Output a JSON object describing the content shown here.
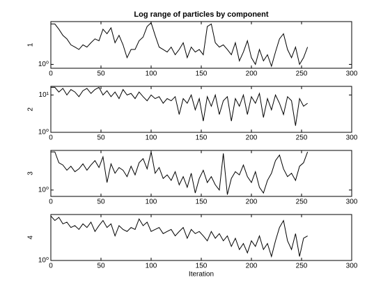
{
  "chart_data": [
    {
      "type": "line",
      "title": "Log range of particles by component",
      "ylabel": "1",
      "color": "#000000",
      "log_scale": true,
      "xlim": [
        0,
        300
      ],
      "xticks": [
        0,
        50,
        100,
        150,
        200,
        250,
        300
      ],
      "ylim": [
        0.9,
        3.2
      ],
      "yticks": [
        {
          "value": 1,
          "label": "10⁰"
        }
      ],
      "x": [
        0,
        4,
        8,
        12,
        16,
        20,
        24,
        28,
        32,
        36,
        40,
        44,
        48,
        52,
        56,
        60,
        64,
        68,
        72,
        76,
        80,
        84,
        88,
        92,
        96,
        100,
        104,
        108,
        112,
        116,
        120,
        124,
        128,
        132,
        136,
        140,
        144,
        148,
        152,
        156,
        160,
        164,
        168,
        172,
        176,
        180,
        184,
        188,
        192,
        196,
        200,
        204,
        208,
        212,
        216,
        220,
        224,
        228,
        232,
        236,
        240,
        244,
        248,
        252,
        256
      ],
      "values": [
        3.0,
        3.0,
        2.6,
        2.2,
        2.0,
        1.7,
        1.6,
        1.5,
        1.7,
        1.6,
        1.8,
        2.0,
        1.9,
        2.6,
        2.3,
        2.7,
        1.8,
        2.2,
        1.7,
        1.2,
        1.5,
        1.5,
        1.9,
        2.1,
        2.8,
        3.1,
        2.2,
        1.6,
        1.5,
        1.4,
        1.6,
        1.3,
        1.5,
        1.8,
        1.2,
        1.6,
        1.4,
        1.5,
        1.3,
        2.8,
        3.0,
        1.8,
        1.6,
        1.7,
        1.5,
        1.3,
        1.8,
        1.1,
        1.4,
        1.9,
        1.2,
        1.0,
        1.5,
        1.1,
        1.3,
        0.95,
        1.4,
        2.0,
        2.3,
        1.5,
        1.2,
        1.6,
        1.0,
        1.2,
        1.6
      ]
    },
    {
      "type": "line",
      "ylabel": "2",
      "color": "#000000",
      "log_scale": true,
      "xlim": [
        0,
        300
      ],
      "xticks": [
        0,
        50,
        100,
        150,
        200,
        250,
        300
      ],
      "ylim": [
        1,
        17
      ],
      "yticks": [
        {
          "value": 1,
          "label": "10⁰"
        },
        {
          "value": 10,
          "label": "10¹"
        }
      ],
      "x": [
        0,
        4,
        8,
        12,
        16,
        20,
        24,
        28,
        32,
        36,
        40,
        44,
        48,
        52,
        56,
        60,
        64,
        68,
        72,
        76,
        80,
        84,
        88,
        92,
        96,
        100,
        104,
        108,
        112,
        116,
        120,
        124,
        128,
        132,
        136,
        140,
        144,
        148,
        152,
        156,
        160,
        164,
        168,
        172,
        176,
        180,
        184,
        188,
        192,
        196,
        200,
        204,
        208,
        212,
        216,
        220,
        224,
        228,
        232,
        236,
        240,
        244,
        248,
        252,
        256
      ],
      "values": [
        16,
        16,
        12,
        15,
        10,
        14,
        12,
        9,
        13,
        15,
        11,
        14,
        16,
        10,
        13,
        9,
        12,
        8,
        14,
        10,
        11,
        8,
        12,
        9,
        7,
        10,
        8,
        9,
        6,
        8,
        7,
        9,
        3,
        8,
        6,
        10,
        4,
        8,
        2,
        9,
        5,
        10,
        3,
        7,
        9,
        2,
        8,
        5,
        10,
        3,
        9,
        6,
        11,
        2.5,
        8,
        4,
        10,
        6,
        3,
        9,
        7,
        1.5,
        8,
        5,
        6
      ]
    },
    {
      "type": "line",
      "ylabel": "3",
      "color": "#000000",
      "log_scale": true,
      "xlim": [
        0,
        300
      ],
      "xticks": [
        0,
        50,
        100,
        150,
        200,
        250,
        300
      ],
      "ylim": [
        0.8,
        4
      ],
      "yticks": [
        {
          "value": 1,
          "label": "10⁰"
        }
      ],
      "x": [
        0,
        4,
        8,
        12,
        16,
        20,
        24,
        28,
        32,
        36,
        40,
        44,
        48,
        52,
        56,
        60,
        64,
        68,
        72,
        76,
        80,
        84,
        88,
        92,
        96,
        100,
        104,
        108,
        112,
        116,
        120,
        124,
        128,
        132,
        136,
        140,
        144,
        148,
        152,
        156,
        160,
        164,
        168,
        172,
        176,
        180,
        184,
        188,
        192,
        196,
        200,
        204,
        208,
        212,
        216,
        220,
        224,
        228,
        232,
        236,
        240,
        244,
        248,
        252,
        256
      ],
      "values": [
        3.8,
        3.8,
        2.6,
        2.4,
        2.0,
        2.3,
        1.9,
        2.1,
        2.5,
        2.0,
        2.4,
        2.8,
        2.2,
        3.2,
        1.3,
        2.5,
        1.8,
        2.2,
        2.0,
        1.6,
        2.3,
        1.7,
        2.6,
        3.0,
        2.1,
        3.8,
        1.8,
        2.2,
        1.5,
        1.7,
        1.4,
        1.9,
        1.2,
        1.6,
        1.1,
        1.8,
        0.9,
        1.5,
        2.0,
        1.3,
        1.6,
        1.2,
        1.0,
        3.6,
        0.85,
        1.5,
        1.9,
        1.7,
        2.4,
        1.6,
        1.3,
        1.9,
        1.1,
        0.9,
        1.4,
        1.8,
        2.8,
        3.4,
        2.1,
        1.6,
        1.8,
        1.4,
        2.3,
        2.6,
        3.8
      ]
    },
    {
      "type": "line",
      "ylabel": "4",
      "xlabel": "Iteration",
      "color": "#000000",
      "log_scale": true,
      "xlim": [
        0,
        300
      ],
      "xticks": [
        0,
        50,
        100,
        150,
        200,
        250,
        300
      ],
      "ylim": [
        1,
        3
      ],
      "yticks": [
        {
          "value": 1,
          "label": "10⁰"
        }
      ],
      "x": [
        0,
        4,
        8,
        12,
        16,
        20,
        24,
        28,
        32,
        36,
        40,
        44,
        48,
        52,
        56,
        60,
        64,
        68,
        72,
        76,
        80,
        84,
        88,
        92,
        96,
        100,
        104,
        108,
        112,
        116,
        120,
        124,
        128,
        132,
        136,
        140,
        144,
        148,
        152,
        156,
        160,
        164,
        168,
        172,
        176,
        180,
        184,
        188,
        192,
        196,
        200,
        204,
        208,
        212,
        216,
        220,
        224,
        228,
        232,
        236,
        240,
        244,
        248,
        252,
        256
      ],
      "values": [
        2.9,
        2.6,
        2.8,
        2.4,
        2.5,
        2.2,
        2.3,
        2.1,
        2.4,
        2.2,
        2.5,
        2.0,
        2.3,
        2.6,
        2.2,
        2.4,
        1.8,
        2.3,
        2.1,
        2.0,
        2.2,
        2.1,
        2.7,
        2.3,
        2.5,
        2.0,
        2.1,
        2.2,
        1.9,
        2.0,
        2.1,
        1.8,
        2.0,
        2.2,
        1.7,
        2.1,
        1.9,
        2.0,
        1.8,
        1.6,
        2.0,
        1.7,
        1.9,
        1.6,
        1.8,
        1.4,
        1.7,
        1.3,
        1.5,
        1.2,
        1.6,
        1.4,
        1.8,
        1.3,
        1.5,
        1.1,
        1.6,
        2.2,
        2.6,
        1.6,
        1.3,
        1.9,
        1.1,
        1.7,
        1.8
      ]
    }
  ]
}
